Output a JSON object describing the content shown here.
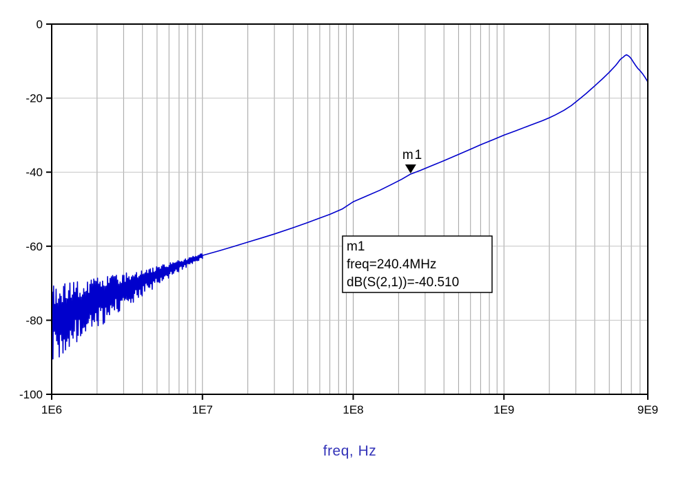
{
  "colors": {
    "trace": "#0000CC",
    "grid": "#A0A0A0",
    "frame": "#000000",
    "text": "#000000",
    "xlabel": "#3333B8",
    "background": "#FFFFFF",
    "marker": "#000000",
    "marker_box_bg": "#FFFFFF"
  },
  "chart_data": {
    "type": "line",
    "title": "",
    "xlabel": "freq, Hz",
    "ylabel": "",
    "x_scale": "log",
    "xlim": [
      1000000.0,
      9000000000.0
    ],
    "ylim": [
      -100,
      0
    ],
    "grid": true,
    "x_ticks": [
      {
        "value": 1000000.0,
        "label": "1E6"
      },
      {
        "value": 10000000.0,
        "label": "1E7"
      },
      {
        "value": 100000000.0,
        "label": "1E8"
      },
      {
        "value": 1000000000.0,
        "label": "1E9"
      },
      {
        "value": 9000000000.0,
        "label": "9E9"
      }
    ],
    "y_ticks": [
      {
        "value": 0,
        "label": "0"
      },
      {
        "value": -20,
        "label": "-20"
      },
      {
        "value": -40,
        "label": "-40"
      },
      {
        "value": -60,
        "label": "-60"
      },
      {
        "value": -80,
        "label": "-80"
      },
      {
        "value": -100,
        "label": "-100"
      }
    ],
    "series": [
      {
        "name": "dB(S(2,1))",
        "color": "#0000CC",
        "points": [
          [
            10000000.0,
            -62.5
          ],
          [
            13000000.0,
            -61.2
          ],
          [
            16000000.0,
            -60.1
          ],
          [
            20000000.0,
            -58.9
          ],
          [
            25000000.0,
            -57.7
          ],
          [
            30000000.0,
            -56.7
          ],
          [
            40000000.0,
            -55.0
          ],
          [
            50000000.0,
            -53.6
          ],
          [
            60000000.0,
            -52.4
          ],
          [
            70000000.0,
            -51.4
          ],
          [
            85000000.0,
            -49.9
          ],
          [
            100000000.0,
            -48.0
          ],
          [
            120000000.0,
            -46.6
          ],
          [
            150000000.0,
            -44.9
          ],
          [
            180000000.0,
            -43.3
          ],
          [
            210000000.0,
            -41.9
          ],
          [
            240400000.0,
            -40.51
          ],
          [
            280000000.0,
            -39.5
          ],
          [
            330000000.0,
            -38.3
          ],
          [
            400000000.0,
            -36.9
          ],
          [
            500000000.0,
            -35.2
          ],
          [
            600000000.0,
            -33.8
          ],
          [
            700000000.0,
            -32.6
          ],
          [
            850000000.0,
            -31.2
          ],
          [
            1000000000.0,
            -30.0
          ],
          [
            1200000000.0,
            -28.8
          ],
          [
            1500000000.0,
            -27.3
          ],
          [
            1800000000.0,
            -26.1
          ],
          [
            2000000000.0,
            -25.3
          ],
          [
            2200000000.0,
            -24.5
          ],
          [
            2500000000.0,
            -23.3
          ],
          [
            2800000000.0,
            -22.0
          ],
          [
            3200000000.0,
            -20.1
          ],
          [
            3500000000.0,
            -18.8
          ],
          [
            3800000000.0,
            -17.5
          ],
          [
            4000000000.0,
            -16.7
          ],
          [
            4200000000.0,
            -15.9
          ],
          [
            4500000000.0,
            -14.8
          ],
          [
            4800000000.0,
            -13.7
          ],
          [
            5000000000.0,
            -13.0
          ],
          [
            5300000000.0,
            -11.9
          ],
          [
            5500000000.0,
            -11.2
          ],
          [
            5700000000.0,
            -10.4
          ],
          [
            5900000000.0,
            -9.6
          ],
          [
            6050000000.0,
            -9.2
          ],
          [
            6200000000.0,
            -8.9
          ],
          [
            6350000000.0,
            -8.5
          ],
          [
            6500000000.0,
            -8.3
          ],
          [
            6650000000.0,
            -8.5
          ],
          [
            6800000000.0,
            -8.8
          ],
          [
            7000000000.0,
            -9.4
          ],
          [
            7200000000.0,
            -10.2
          ],
          [
            7450000000.0,
            -11.1
          ],
          [
            7700000000.0,
            -11.9
          ],
          [
            8000000000.0,
            -12.6
          ],
          [
            8300000000.0,
            -13.4
          ],
          [
            8600000000.0,
            -14.3
          ],
          [
            9000000000.0,
            -15.6
          ]
        ]
      }
    ],
    "noise": {
      "description": "dense measurement noise on the trace below 10 MHz",
      "freq_range": [
        1000000.0,
        10000000.0
      ],
      "baseline_db": [
        -79.3,
        -62.5
      ],
      "start_amplitude_db": 9.5,
      "end_amplitude_db": 0.7
    },
    "marker": {
      "id": "m1",
      "label": "m1",
      "freq_hz": 240400000.0,
      "freq_label": "240.4MHz",
      "value_db": -40.51,
      "info_lines": [
        "m1",
        "freq=240.4MHz",
        "dB(S(2,1))=-40.510"
      ]
    }
  }
}
